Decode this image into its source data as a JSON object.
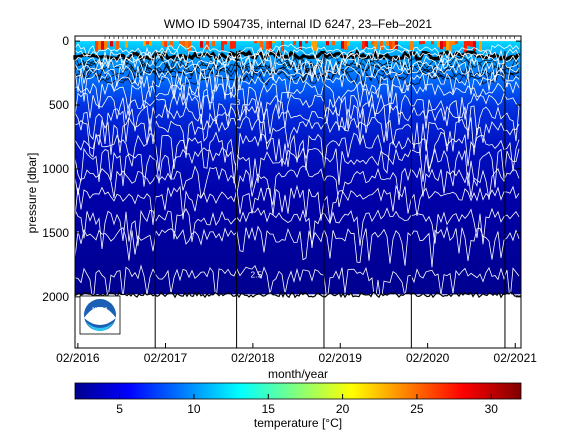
{
  "chart_data": {
    "type": "heatmap",
    "title": "WMO ID 5904735, internal ID 6247, 23–Feb–2021",
    "xlabel": "month/year",
    "ylabel": "pressure [dbar]",
    "x_ticks": [
      "02/2016",
      "02/2017",
      "02/2018",
      "02/2019",
      "02/2020",
      "02/2021"
    ],
    "x_range": [
      "2016-01-20",
      "2021-02-25"
    ],
    "y_ticks": [
      0,
      500,
      1000,
      1500,
      2000
    ],
    "y_range": [
      -40,
      2400
    ],
    "y_reversed": true,
    "colorbar": {
      "label": "temperature [°C]",
      "ticks": [
        5,
        10,
        15,
        20,
        25,
        30
      ],
      "range": [
        2,
        32
      ],
      "colormap": "jet"
    },
    "profile_max_pressure_dbar": 1980,
    "isotherms_degC": [
      4,
      5,
      6,
      7,
      8,
      9,
      10,
      11,
      12,
      13,
      14,
      15,
      16,
      17,
      18
    ],
    "isotherm_labels": [
      {
        "text": "8",
        "date": "2017-12-01",
        "pressure": 500
      },
      {
        "text": "2.5",
        "date": "2018-02-15",
        "pressure": 1850
      }
    ],
    "vertical_markers": [
      "2016-12-20",
      "2017-11-25",
      "2018-11-25",
      "2019-11-25",
      "2020-12-20"
    ]
  },
  "logo": {
    "text": "NOAA"
  },
  "colors": {
    "deep": "#00008f",
    "mid": "#0050ff",
    "warm": "#ff3000",
    "contour": "#ffffff"
  }
}
